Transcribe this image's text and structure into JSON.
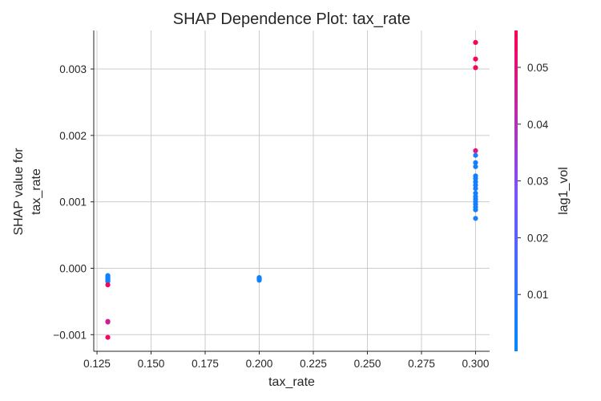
{
  "colors": {
    "low": "#008afb",
    "mid": "#7c52ff",
    "high": "#ff0052",
    "grid": "#cccccc",
    "text": "#262626"
  },
  "chart_data": {
    "type": "scatter",
    "title": "SHAP Dependence Plot: tax_rate",
    "xlabel": "tax_rate",
    "ylabel_lines": [
      "SHAP value for",
      "tax_rate"
    ],
    "colorbar_label": "lag1_vol",
    "xlim": [
      0.1235,
      0.3065
    ],
    "ylim": [
      -0.00125,
      0.00358
    ],
    "clim": [
      0.0,
      0.0565
    ],
    "grid": true,
    "x_ticks": [
      "0.125",
      "0.150",
      "0.175",
      "0.200",
      "0.225",
      "0.250",
      "0.275",
      "0.300"
    ],
    "y_ticks": [
      "−0.001",
      "0.000",
      "0.001",
      "0.002",
      "0.003"
    ],
    "colorbar_ticks": [
      "0.01",
      "0.02",
      "0.03",
      "0.04",
      "0.05"
    ],
    "points": [
      {
        "x": 0.13,
        "y": -0.00011,
        "c": 0.004
      },
      {
        "x": 0.13,
        "y": -0.00012,
        "c": 0.004
      },
      {
        "x": 0.13,
        "y": -0.00013,
        "c": 0.004
      },
      {
        "x": 0.13,
        "y": -0.00014,
        "c": 0.004
      },
      {
        "x": 0.13,
        "y": -0.00015,
        "c": 0.004
      },
      {
        "x": 0.13,
        "y": -0.00016,
        "c": 0.004
      },
      {
        "x": 0.13,
        "y": -0.00017,
        "c": 0.004
      },
      {
        "x": 0.13,
        "y": -0.00018,
        "c": 0.004
      },
      {
        "x": 0.13,
        "y": -0.00019,
        "c": 0.004
      },
      {
        "x": 0.13,
        "y": -0.0002,
        "c": 0.004
      },
      {
        "x": 0.13,
        "y": -0.00025,
        "c": 0.055
      },
      {
        "x": 0.13,
        "y": -0.0008,
        "c": 0.045
      },
      {
        "x": 0.13,
        "y": -0.00081,
        "c": 0.046
      },
      {
        "x": 0.13,
        "y": -0.00104,
        "c": 0.054
      },
      {
        "x": 0.2,
        "y": -0.00014,
        "c": 0.004
      },
      {
        "x": 0.2,
        "y": -0.00015,
        "c": 0.004
      },
      {
        "x": 0.2,
        "y": -0.00016,
        "c": 0.004
      },
      {
        "x": 0.2,
        "y": -0.00017,
        "c": 0.004
      },
      {
        "x": 0.2,
        "y": -0.00018,
        "c": 0.004
      },
      {
        "x": 0.3,
        "y": 0.0034,
        "c": 0.055
      },
      {
        "x": 0.3,
        "y": 0.00315,
        "c": 0.055
      },
      {
        "x": 0.3,
        "y": 0.00302,
        "c": 0.055
      },
      {
        "x": 0.3,
        "y": 0.00177,
        "c": 0.05
      },
      {
        "x": 0.3,
        "y": 0.0017,
        "c": 0.006
      },
      {
        "x": 0.3,
        "y": 0.00159,
        "c": 0.005
      },
      {
        "x": 0.3,
        "y": 0.00153,
        "c": 0.005
      },
      {
        "x": 0.3,
        "y": 0.00139,
        "c": 0.005
      },
      {
        "x": 0.3,
        "y": 0.00135,
        "c": 0.005
      },
      {
        "x": 0.3,
        "y": 0.0013,
        "c": 0.005
      },
      {
        "x": 0.3,
        "y": 0.00125,
        "c": 0.005
      },
      {
        "x": 0.3,
        "y": 0.0012,
        "c": 0.005
      },
      {
        "x": 0.3,
        "y": 0.00113,
        "c": 0.005
      },
      {
        "x": 0.3,
        "y": 0.00108,
        "c": 0.005
      },
      {
        "x": 0.3,
        "y": 0.00104,
        "c": 0.005
      },
      {
        "x": 0.3,
        "y": 0.001,
        "c": 0.005
      },
      {
        "x": 0.3,
        "y": 0.00096,
        "c": 0.005
      },
      {
        "x": 0.3,
        "y": 0.00092,
        "c": 0.005
      },
      {
        "x": 0.3,
        "y": 0.00088,
        "c": 0.005
      },
      {
        "x": 0.3,
        "y": 0.00075,
        "c": 0.005
      }
    ]
  }
}
